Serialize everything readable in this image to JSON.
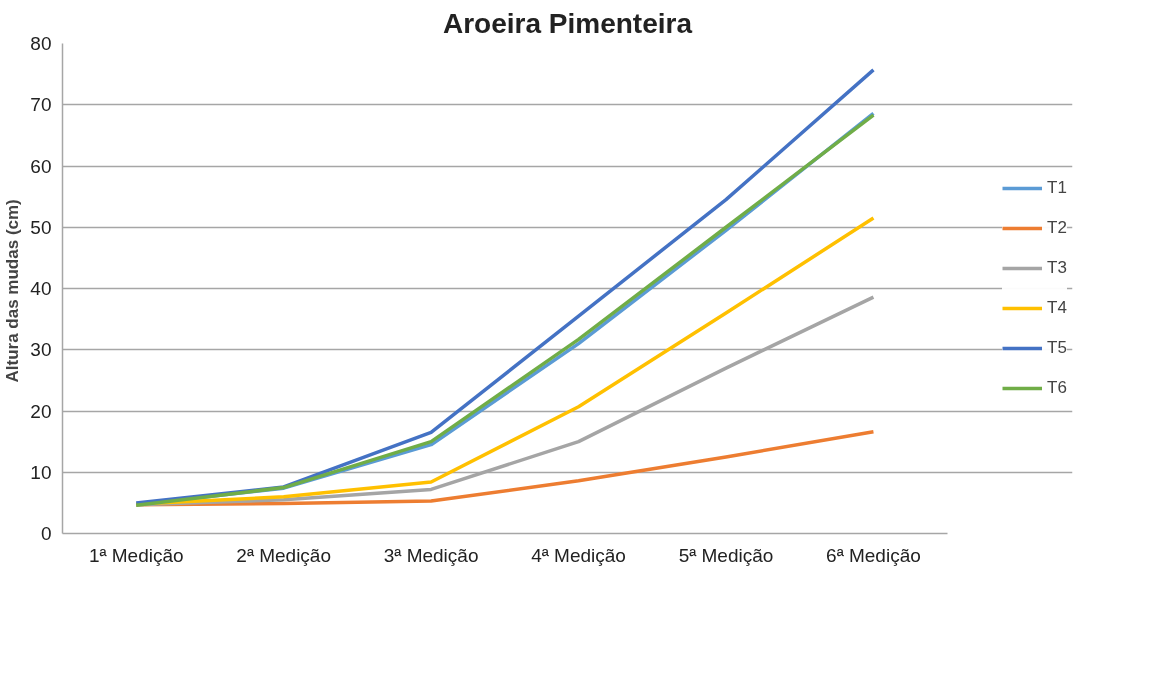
{
  "chart_data": {
    "type": "line",
    "title": "Aroeira Pimenteira",
    "ylabel": "Altura  das mudas (cm)",
    "categories": [
      "1ª Medição",
      "2ª Medição",
      "3ª Medição",
      "4ª Medição",
      "5ª Medição",
      "6ª Medição"
    ],
    "ylim": [
      0,
      80
    ],
    "yticks": [
      0,
      10,
      20,
      30,
      40,
      50,
      60,
      70,
      80
    ],
    "grid": "y",
    "legend": "right",
    "marker": "none",
    "series": [
      {
        "name": "T1",
        "color": "#5b9bd5",
        "values": [
          4.7,
          7.4,
          14.5,
          31.0,
          49.5,
          68.6
        ]
      },
      {
        "name": "T2",
        "color": "#ed7d31",
        "values": [
          4.7,
          4.9,
          5.3,
          8.6,
          12.5,
          16.6
        ]
      },
      {
        "name": "T3",
        "color": "#a5a5a5",
        "values": [
          4.7,
          5.5,
          7.2,
          15.0,
          27.0,
          38.6
        ]
      },
      {
        "name": "T4",
        "color": "#ffc000",
        "values": [
          4.8,
          6.0,
          8.4,
          20.7,
          36.0,
          51.5
        ]
      },
      {
        "name": "T5",
        "color": "#4472c4",
        "values": [
          5.0,
          7.6,
          16.5,
          35.5,
          54.5,
          75.7
        ]
      },
      {
        "name": "T6",
        "color": "#70ad47",
        "values": [
          4.6,
          7.5,
          15.0,
          31.7,
          50.0,
          68.3
        ]
      }
    ]
  }
}
